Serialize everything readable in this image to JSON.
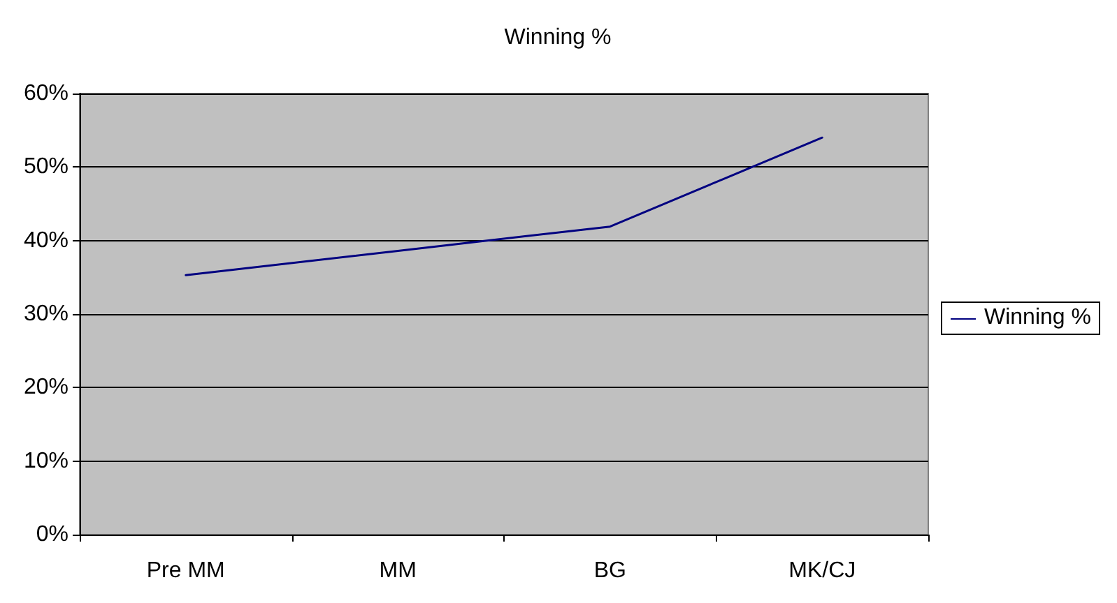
{
  "chart_data": {
    "type": "line",
    "title": "Winning %",
    "categories": [
      "Pre MM",
      "MM",
      "BG",
      "MK/CJ"
    ],
    "series": [
      {
        "name": "Winning %",
        "color": "#000080",
        "values": [
          35.3,
          38.6,
          41.9,
          54.0
        ]
      }
    ],
    "ylim": [
      0,
      60
    ],
    "yticks": [
      {
        "value": 0,
        "label": "0%"
      },
      {
        "value": 10,
        "label": "10%"
      },
      {
        "value": 20,
        "label": "20%"
      },
      {
        "value": 30,
        "label": "30%"
      },
      {
        "value": 40,
        "label": "40%"
      },
      {
        "value": 50,
        "label": "50%"
      },
      {
        "value": 60,
        "label": "60%"
      }
    ],
    "grid": "y",
    "legend": "right",
    "marker": "none",
    "line_style": "solid"
  }
}
